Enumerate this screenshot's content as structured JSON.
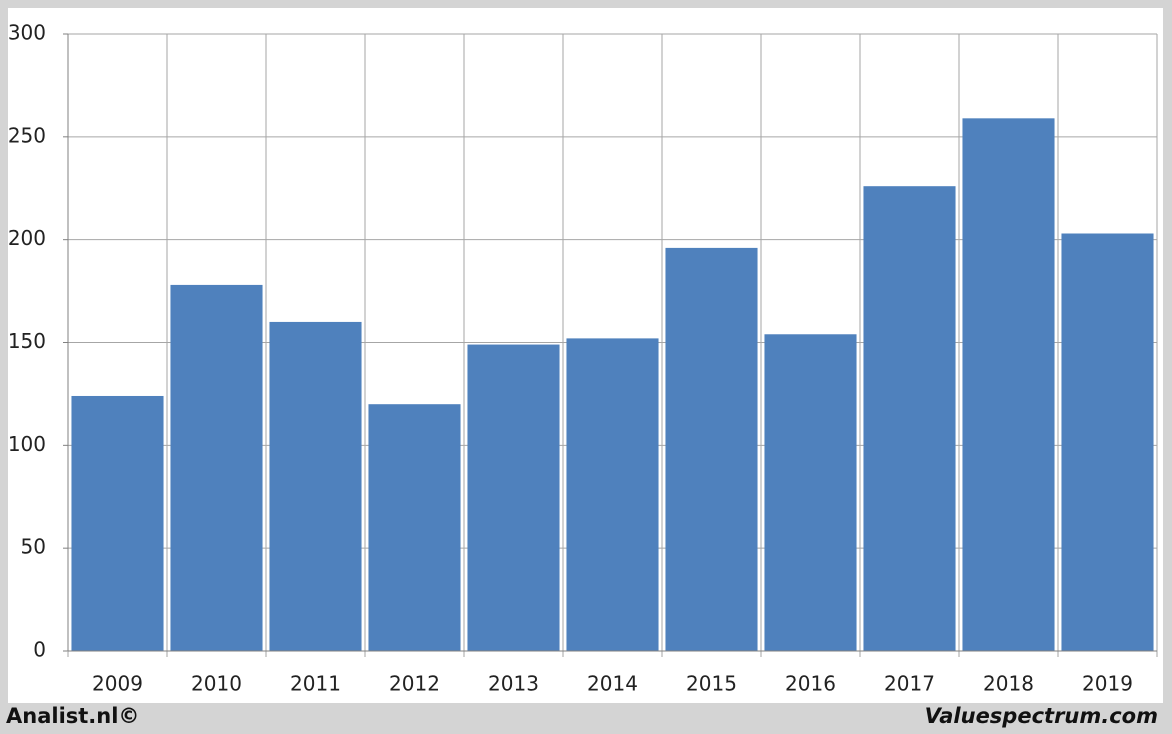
{
  "chart_data": {
    "type": "bar",
    "categories": [
      "2009",
      "2010",
      "2011",
      "2012",
      "2013",
      "2014",
      "2015",
      "2016",
      "2017",
      "2018",
      "2019"
    ],
    "values": [
      124,
      178,
      160,
      120,
      149,
      152,
      196,
      154,
      226,
      259,
      203
    ],
    "color": "#4f81bd",
    "ylim": [
      0,
      300
    ],
    "yticks": [
      0,
      50,
      100,
      150,
      200,
      250,
      300
    ],
    "grid": true
  },
  "footer": {
    "left": "Analist.nl©",
    "right": "Valuespectrum.com"
  }
}
